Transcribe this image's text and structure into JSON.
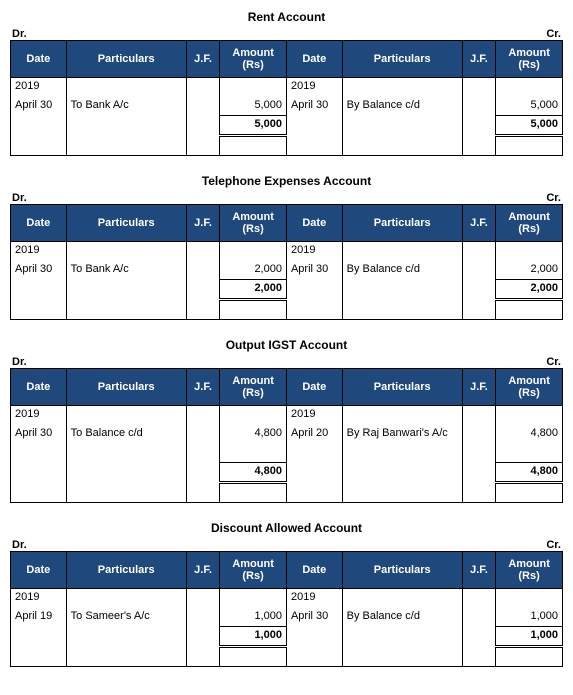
{
  "headers": {
    "dr": "Dr.",
    "cr": "Cr.",
    "date": "Date",
    "particulars": "Particulars",
    "jf": "J.F.",
    "amount": "Amount (Rs)"
  },
  "colors": {
    "header_bg": "#1f497d",
    "header_text": "#ffffff",
    "border": "#000000",
    "background": "#ffffff"
  },
  "accounts": [
    {
      "title": "Rent Account",
      "debit": {
        "year": "2019",
        "date": "April 30",
        "part": "To Bank A/c",
        "amount": "5,000",
        "total": "5,000"
      },
      "credit": {
        "year": "2019",
        "date": "April 30",
        "part": "By Balance c/d",
        "amount": "5,000",
        "total": "5,000"
      }
    },
    {
      "title": "Telephone Expenses Account",
      "debit": {
        "year": "2019",
        "date": "April 30",
        "part": "To Bank A/c",
        "amount": "2,000",
        "total": "2,000"
      },
      "credit": {
        "year": "2019",
        "date": "April 30",
        "part": "By Balance c/d",
        "amount": "2,000",
        "total": "2,000"
      }
    },
    {
      "title": "Output IGST Account",
      "debit": {
        "year": "2019",
        "date": "April 30",
        "part": "To Balance c/d",
        "amount": "4,800",
        "total": "4,800"
      },
      "credit": {
        "year": "2019",
        "date": "April 20",
        "part": "By Raj Banwari's A/c",
        "amount": "4,800",
        "total": "4,800"
      },
      "extra_row_debit": true
    },
    {
      "title": "Discount Allowed Account",
      "debit": {
        "year": "2019",
        "date": "April 19",
        "part": "To Sameer's A/c",
        "amount": "1,000",
        "total": "1,000"
      },
      "credit": {
        "year": "2019",
        "date": "April 30",
        "part": "By Balance c/d",
        "amount": "1,000",
        "total": "1,000"
      }
    }
  ]
}
